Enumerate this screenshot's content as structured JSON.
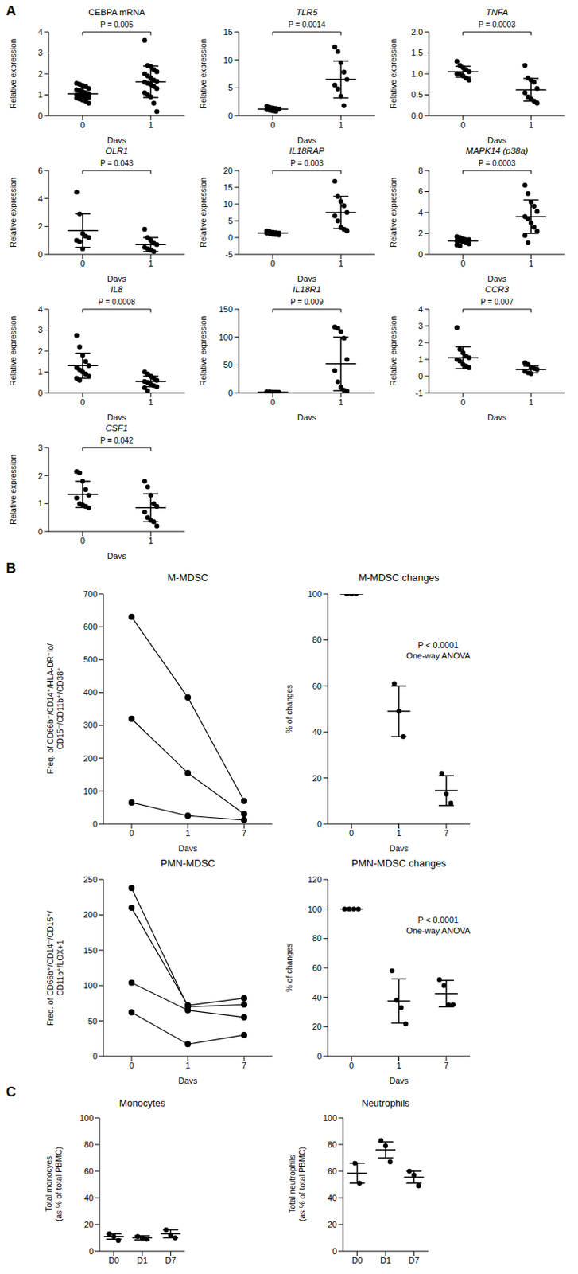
{
  "chart_data": [
    {
      "panel_label": "A",
      "type": "scatter",
      "title": "CEBPA mRNA",
      "xlabel": "Days",
      "ylabel": "Relative expression",
      "categories": [
        "0",
        "1"
      ],
      "values": [
        [
          1.55,
          1.5,
          1.45,
          1.4,
          1.3,
          1.25,
          1.2,
          1.15,
          1.1,
          1.05,
          1.0,
          1.0,
          0.95,
          0.9,
          0.9,
          0.85,
          0.8,
          0.75,
          0.7,
          0.6
        ],
        [
          3.6,
          2.4,
          2.35,
          2.2,
          2.1,
          2.0,
          1.9,
          1.8,
          1.7,
          1.65,
          1.6,
          1.55,
          1.5,
          1.4,
          1.3,
          1.1,
          1.0,
          0.9,
          0.6,
          0.2
        ]
      ],
      "mean": [
        1.05,
        1.62
      ],
      "sd": [
        0.26,
        0.75
      ],
      "ylim": [
        0,
        4
      ],
      "yticks": [
        0,
        1,
        2,
        3,
        4
      ],
      "annotation": "P = 0.005",
      "color": "#000000"
    },
    {
      "type": "scatter",
      "title": "TLR5",
      "xlabel": "Days",
      "ylabel": "Relative expression",
      "categories": [
        "0",
        "1"
      ],
      "values": [
        [
          1.7,
          1.5,
          1.4,
          1.3,
          1.2,
          1.1,
          1.0,
          0.9,
          0.8
        ],
        [
          12.3,
          11.5,
          9.5,
          7.8,
          6.5,
          5.5,
          4.8,
          3.5,
          1.8
        ]
      ],
      "mean": [
        1.2,
        6.5
      ],
      "sd": [
        0.3,
        3.3
      ],
      "ylim": [
        0,
        15
      ],
      "yticks": [
        0,
        5,
        10,
        15
      ],
      "annotation": "P = 0.0014",
      "color": "#000000"
    },
    {
      "type": "scatter",
      "title": "TNFA",
      "xlabel": "Days",
      "ylabel": "Relative expression",
      "categories": [
        "0",
        "1"
      ],
      "values": [
        [
          1.3,
          1.2,
          1.15,
          1.1,
          1.05,
          1.0,
          1.0,
          0.95,
          0.9,
          0.85
        ],
        [
          1.2,
          0.9,
          0.85,
          0.8,
          0.65,
          0.55,
          0.45,
          0.4,
          0.35,
          0.3
        ]
      ],
      "mean": [
        1.05,
        0.62
      ],
      "sd": [
        0.13,
        0.27
      ],
      "ylim": [
        0,
        2
      ],
      "yticks": [
        {
          "value": 0,
          "label": "0.0"
        },
        0.5,
        {
          "value": 1,
          "label": "1.0"
        },
        1.5,
        {
          "value": 2,
          "label": "2.0"
        }
      ],
      "annotation": "P = 0.0003",
      "color": "#000000"
    },
    {
      "type": "scatter",
      "title": "OLR1",
      "xlabel": "Days",
      "ylabel": "Relative expression",
      "categories": [
        "0",
        "1"
      ],
      "values": [
        [
          4.45,
          2.9,
          1.5,
          1.3,
          1.2,
          1.0,
          0.9,
          0.4
        ],
        [
          1.8,
          1.2,
          1.0,
          0.8,
          0.7,
          0.5,
          0.4,
          0.3,
          0.2
        ]
      ],
      "mean": [
        1.7,
        0.7
      ],
      "sd": [
        1.2,
        0.5
      ],
      "ylim": [
        0,
        6
      ],
      "yticks": [
        0,
        2,
        4,
        6
      ],
      "annotation": "P = 0.043",
      "color": "#000000"
    },
    {
      "type": "scatter",
      "title": "IL18RAP",
      "xlabel": "Days",
      "ylabel": "Relative expression",
      "categories": [
        "0",
        "1"
      ],
      "values": [
        [
          2.0,
          1.8,
          1.6,
          1.5,
          1.4,
          1.3,
          1.2,
          1.0,
          0.9,
          0.8
        ],
        [
          16.8,
          12.3,
          10.8,
          9.5,
          7.5,
          6.5,
          5.0,
          3.0,
          2.5,
          2.0
        ]
      ],
      "mean": [
        1.35,
        7.5
      ],
      "sd": [
        0.4,
        4.8
      ],
      "ylim": [
        -5,
        20
      ],
      "yticks": [
        -5,
        0,
        5,
        10,
        15,
        20
      ],
      "annotation": "P = 0.003",
      "color": "#000000"
    },
    {
      "type": "scatter",
      "title": "MAPK14 (p38a)",
      "xlabel": "Days",
      "ylabel": "Relative expression",
      "categories": [
        "0",
        "1"
      ],
      "values": [
        [
          1.7,
          1.6,
          1.5,
          1.4,
          1.4,
          1.3,
          1.3,
          1.2,
          1.1,
          1.0,
          0.9,
          0.8
        ],
        [
          6.6,
          5.8,
          5.0,
          4.6,
          4.1,
          3.6,
          3.4,
          3.0,
          2.6,
          2.2,
          1.8,
          1.1
        ]
      ],
      "mean": [
        1.27,
        3.6
      ],
      "sd": [
        0.27,
        1.6
      ],
      "ylim": [
        0,
        8
      ],
      "yticks": [
        0,
        2,
        4,
        6,
        8
      ],
      "annotation": "P = 0.0003",
      "color": "#000000"
    },
    {
      "type": "scatter",
      "title": "IL8",
      "xlabel": "Days",
      "ylabel": "Relative expression",
      "categories": [
        "0",
        "1"
      ],
      "values": [
        [
          2.75,
          2.2,
          1.8,
          1.5,
          1.3,
          1.2,
          1.1,
          1.0,
          0.9,
          0.8,
          0.7,
          0.6
        ],
        [
          1.0,
          0.9,
          0.8,
          0.7,
          0.6,
          0.55,
          0.5,
          0.4,
          0.35,
          0.3,
          0.25,
          0.1
        ]
      ],
      "mean": [
        1.3,
        0.55
      ],
      "sd": [
        0.6,
        0.25
      ],
      "ylim": [
        0,
        4
      ],
      "yticks": [
        0,
        1,
        2,
        3,
        4
      ],
      "annotation": "P = 0.0008",
      "color": "#000000"
    },
    {
      "type": "scatter",
      "title": "IL18R1",
      "xlabel": "Days",
      "ylabel": "Relative expression",
      "categories": [
        "0",
        "1"
      ],
      "values": [
        [
          2,
          2,
          1.5,
          1.5,
          1,
          1,
          1,
          1,
          0.5,
          0.5
        ],
        [
          118,
          116,
          110,
          98,
          60,
          40,
          20,
          10,
          5,
          3
        ]
      ],
      "mean": [
        1.2,
        52
      ],
      "sd": [
        0.5,
        48
      ],
      "ylim": [
        0,
        150
      ],
      "yticks": [
        0,
        50,
        100,
        150
      ],
      "annotation": "P = 0.009",
      "color": "#000000"
    },
    {
      "type": "scatter",
      "title": "CCR3",
      "xlabel": "Days",
      "ylabel": "Relative expression",
      "categories": [
        "0",
        "1"
      ],
      "values": [
        [
          2.9,
          1.6,
          1.4,
          1.2,
          1.1,
          1.0,
          0.9,
          0.7,
          0.6,
          0.5
        ],
        [
          0.8,
          0.7,
          0.5,
          0.45,
          0.4,
          0.3,
          0.2,
          0.15
        ]
      ],
      "mean": [
        1.1,
        0.4
      ],
      "sd": [
        0.65,
        0.2
      ],
      "ylim": [
        -1,
        4
      ],
      "yticks": [
        -1,
        0,
        1,
        2,
        3,
        4
      ],
      "annotation": "P = 0.007",
      "color": "#000000"
    },
    {
      "type": "scatter",
      "title": "CSF1",
      "xlabel": "Days",
      "ylabel": "Relative expression",
      "categories": [
        "0",
        "1"
      ],
      "values": [
        [
          2.15,
          2.1,
          1.8,
          1.5,
          1.3,
          1.2,
          1.0,
          0.95,
          0.9,
          0.85
        ],
        [
          1.8,
          1.6,
          1.3,
          1.0,
          0.9,
          0.7,
          0.5,
          0.4,
          0.35,
          0.2
        ]
      ],
      "mean": [
        1.33,
        0.85
      ],
      "sd": [
        0.47,
        0.5
      ],
      "ylim": [
        0,
        3
      ],
      "yticks": [
        0,
        1,
        2,
        3
      ],
      "annotation": "P = 0.042",
      "color": "#000000"
    },
    {
      "panel_label": "B",
      "type": "line",
      "title": "M-MDSC",
      "xlabel": "Days",
      "ylabel": "Freq. of CD66b⁻/CD14⁺/HLA-DR⁻lo/\nCD15⁻/CD11b⁺/CD38⁺",
      "categories": [
        "0",
        "1",
        "7"
      ],
      "series": [
        {
          "color": "#000000",
          "values": [
            630,
            385,
            70
          ]
        },
        {
          "color": "#000000",
          "values": [
            320,
            155,
            30
          ]
        },
        {
          "color": "#000000",
          "values": [
            65,
            25,
            12
          ]
        }
      ],
      "ylim": [
        0,
        700
      ],
      "yticks": [
        0,
        100,
        200,
        300,
        400,
        500,
        600,
        700
      ],
      "marker": "circle"
    },
    {
      "type": "scatter",
      "title": "M-MDSC changes",
      "xlabel": "Days",
      "ylabel": "% of changes",
      "categories": [
        "0",
        "1",
        "7"
      ],
      "values": [
        [
          100,
          100,
          100
        ],
        [
          61,
          49,
          38
        ],
        [
          22,
          13,
          9
        ]
      ],
      "mean": [
        100,
        49,
        14.5
      ],
      "sd": [
        0,
        11,
        6.5
      ],
      "ylim": [
        0,
        100
      ],
      "yticks": [
        0,
        20,
        40,
        60,
        80,
        100
      ],
      "annotations": [
        "P < 0.0001",
        "One-way ANOVA"
      ],
      "color": "#000000"
    },
    {
      "type": "line",
      "title": "PMN-MDSC",
      "xlabel": "Days",
      "ylabel": "Freq. of CD66b⁺/CD14⁻/CD15⁺/\nCD11b⁺/LOX+1",
      "categories": [
        "0",
        "1",
        "7"
      ],
      "series": [
        {
          "color": "#000000",
          "values": [
            238,
            70,
            73
          ]
        },
        {
          "color": "#000000",
          "values": [
            210,
            72,
            82
          ]
        },
        {
          "color": "#000000",
          "values": [
            104,
            65,
            55
          ]
        },
        {
          "color": "#000000",
          "values": [
            62,
            17,
            30
          ]
        }
      ],
      "ylim": [
        0,
        250
      ],
      "yticks": [
        0,
        50,
        100,
        150,
        200,
        250
      ],
      "marker": "circle"
    },
    {
      "type": "scatter",
      "title": "PMN-MDSC changes",
      "xlabel": "Days",
      "ylabel": "% of changes",
      "categories": [
        "0",
        "1",
        "7"
      ],
      "values": [
        [
          100,
          100,
          100,
          100
        ],
        [
          58,
          38,
          33,
          22
        ],
        [
          52,
          48,
          35,
          35
        ]
      ],
      "mean": [
        100,
        37.5,
        42.5
      ],
      "sd": [
        0,
        15,
        9
      ],
      "ylim": [
        0,
        120
      ],
      "yticks": [
        0,
        20,
        40,
        60,
        80,
        100,
        120
      ],
      "annotations": [
        "P < 0.0001",
        "One-way ANOVA"
      ],
      "color": "#000000"
    },
    {
      "panel_label": "C",
      "type": "scatter",
      "title": "Monocytes",
      "ylabel": "Total monocyes\n(as % of total PBMC)",
      "categories": [
        "D0",
        "D1",
        "D7"
      ],
      "values": [
        [
          13,
          11,
          8
        ],
        [
          11,
          10,
          9
        ],
        [
          16,
          12,
          10
        ]
      ],
      "mean": [
        11,
        10,
        13
      ],
      "sd": [
        2,
        1.5,
        3
      ],
      "ylim": [
        0,
        100
      ],
      "yticks": [
        0,
        20,
        40,
        60,
        80,
        100
      ],
      "color": "#000000"
    },
    {
      "type": "scatter",
      "title": "Neutrophils",
      "ylabel": "Total neutrophils\n(as % of total PBMC)",
      "categories": [
        "D0",
        "D1",
        "D7"
      ],
      "values": [
        [
          66,
          51
        ],
        [
          83,
          79,
          67
        ],
        [
          60,
          57,
          49
        ]
      ],
      "mean": [
        58.5,
        76,
        55.5
      ],
      "sd": [
        7.5,
        6,
        4.5
      ],
      "ylim": [
        0,
        100
      ],
      "yticks": [
        0,
        20,
        40,
        60,
        80,
        100
      ],
      "color": "#000000"
    }
  ]
}
